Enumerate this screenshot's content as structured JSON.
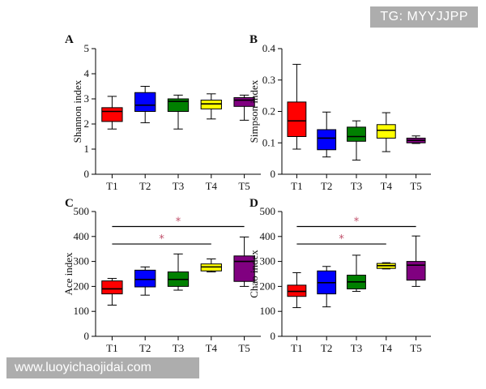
{
  "watermarks": {
    "top_right": "TG: MYYJJPP",
    "bottom_left": "www.luoyichaojidai.com"
  },
  "chart_data": [
    {
      "type": "box",
      "panel": "A",
      "ylabel": "Shannon index",
      "ylim": [
        0,
        5
      ],
      "yticks": [
        0,
        1,
        2,
        3,
        4,
        5
      ],
      "categories": [
        "T1",
        "T2",
        "T3",
        "T4",
        "T5"
      ],
      "colors": [
        "#ff0000",
        "#0000ff",
        "#008000",
        "#ffff00",
        "#800080"
      ],
      "boxes": [
        {
          "min": 1.8,
          "q1": 2.1,
          "median": 2.5,
          "q3": 2.65,
          "max": 3.1
        },
        {
          "min": 2.05,
          "q1": 2.5,
          "median": 2.75,
          "q3": 3.25,
          "max": 3.5
        },
        {
          "min": 1.8,
          "q1": 2.5,
          "median": 2.9,
          "q3": 3.0,
          "max": 3.15
        },
        {
          "min": 2.2,
          "q1": 2.6,
          "median": 2.8,
          "q3": 2.95,
          "max": 3.2
        },
        {
          "min": 2.15,
          "q1": 2.7,
          "median": 2.95,
          "q3": 3.05,
          "max": 3.15
        }
      ],
      "significance": []
    },
    {
      "type": "box",
      "panel": "B",
      "ylabel": "Simpson index",
      "ylim": [
        0,
        0.4
      ],
      "yticks": [
        0,
        0.1,
        0.2,
        0.3,
        0.4
      ],
      "ytick_labels": [
        "0",
        "0.1",
        "0.2",
        "0.3",
        "0.4"
      ],
      "categories": [
        "T1",
        "T2",
        "T3",
        "T4",
        "T5"
      ],
      "colors": [
        "#ff0000",
        "#0000ff",
        "#008000",
        "#ffff00",
        "#800080"
      ],
      "boxes": [
        {
          "min": 0.08,
          "q1": 0.12,
          "median": 0.17,
          "q3": 0.23,
          "max": 0.35
        },
        {
          "min": 0.055,
          "q1": 0.078,
          "median": 0.115,
          "q3": 0.142,
          "max": 0.198
        },
        {
          "min": 0.045,
          "q1": 0.105,
          "median": 0.12,
          "q3": 0.15,
          "max": 0.17
        },
        {
          "min": 0.072,
          "q1": 0.115,
          "median": 0.14,
          "q3": 0.158,
          "max": 0.196
        },
        {
          "min": 0.098,
          "q1": 0.1,
          "median": 0.108,
          "q3": 0.115,
          "max": 0.122
        }
      ],
      "significance": []
    },
    {
      "type": "box",
      "panel": "C",
      "ylabel": "Ace index",
      "ylim": [
        0,
        500
      ],
      "yticks": [
        0,
        100,
        200,
        300,
        400,
        500
      ],
      "categories": [
        "T1",
        "T2",
        "T3",
        "T4",
        "T5"
      ],
      "colors": [
        "#ff0000",
        "#0000ff",
        "#008000",
        "#ffff00",
        "#800080"
      ],
      "boxes": [
        {
          "min": 125,
          "q1": 170,
          "median": 190,
          "q3": 222,
          "max": 232
        },
        {
          "min": 165,
          "q1": 198,
          "median": 228,
          "q3": 265,
          "max": 278
        },
        {
          "min": 185,
          "q1": 200,
          "median": 228,
          "q3": 258,
          "max": 330
        },
        {
          "min": 258,
          "q1": 262,
          "median": 278,
          "q3": 290,
          "max": 310
        },
        {
          "min": 200,
          "q1": 220,
          "median": 300,
          "q3": 322,
          "max": 398
        }
      ],
      "significance": [
        {
          "from": 0,
          "to": 4,
          "y": 440,
          "label": "*"
        },
        {
          "from": 0,
          "to": 3,
          "y": 370,
          "label": "*"
        }
      ]
    },
    {
      "type": "box",
      "panel": "D",
      "ylabel": "Chao index",
      "ylim": [
        0,
        500
      ],
      "yticks": [
        0,
        100,
        200,
        300,
        400,
        500
      ],
      "categories": [
        "T1",
        "T2",
        "T3",
        "T4",
        "T5"
      ],
      "colors": [
        "#ff0000",
        "#0000ff",
        "#008000",
        "#ffff00",
        "#800080"
      ],
      "boxes": [
        {
          "min": 115,
          "q1": 160,
          "median": 180,
          "q3": 205,
          "max": 255
        },
        {
          "min": 118,
          "q1": 170,
          "median": 215,
          "q3": 262,
          "max": 280
        },
        {
          "min": 180,
          "q1": 190,
          "median": 218,
          "q3": 245,
          "max": 325
        },
        {
          "min": 270,
          "q1": 272,
          "median": 283,
          "q3": 292,
          "max": 295
        },
        {
          "min": 200,
          "q1": 225,
          "median": 285,
          "q3": 300,
          "max": 402
        }
      ],
      "significance": [
        {
          "from": 0,
          "to": 4,
          "y": 440,
          "label": "*"
        },
        {
          "from": 0,
          "to": 3,
          "y": 370,
          "label": "*"
        }
      ]
    }
  ]
}
